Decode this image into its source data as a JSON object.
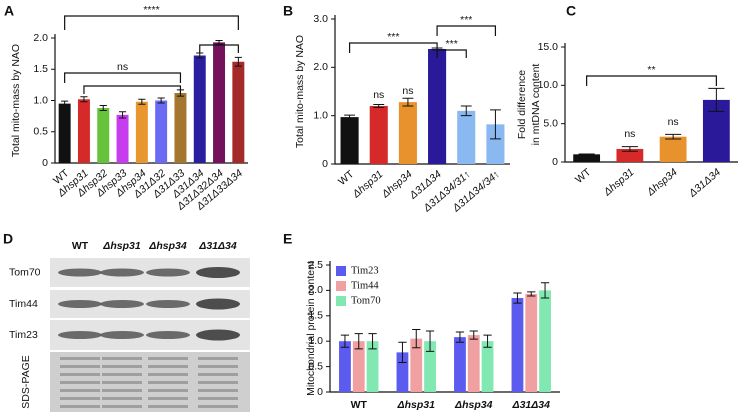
{
  "chart_data": [
    {
      "type": "bar",
      "panel": "A",
      "y_label": "Total mito-mass by NAO",
      "categories": [
        "WT",
        "Δhsp31",
        "Δhsp32",
        "Δhsp33",
        "Δhsp34",
        "Δ31Δ32",
        "Δ31Δ33",
        "Δ31Δ34",
        "Δ31Δ32Δ34",
        "Δ31Δ33Δ34"
      ],
      "values": [
        0.95,
        1.02,
        0.88,
        0.77,
        0.98,
        1.0,
        1.12,
        1.72,
        1.93,
        1.62
      ],
      "errors": [
        0.04,
        0.04,
        0.04,
        0.05,
        0.04,
        0.04,
        0.05,
        0.04,
        0.03,
        0.07
      ],
      "colors": [
        "#111111",
        "#d62a2a",
        "#66c23a",
        "#c83cf0",
        "#e8962e",
        "#6a6af5",
        "#a5772e",
        "#2a1f9e",
        "#74105c",
        "#a52a2a"
      ],
      "ylim": [
        0,
        2.0
      ],
      "yticks": [
        0,
        0.5,
        {
          "value": 1,
          "label": "1.0"
        },
        1.5,
        {
          "value": 2,
          "label": "2.0"
        }
      ],
      "annotations": [
        "****",
        "ns"
      ]
    },
    {
      "type": "bar",
      "panel": "B",
      "y_label": "Total mito-mass by NAO",
      "categories": [
        "WT",
        "Δhsp31",
        "Δhsp34",
        "Δ31Δ34",
        "Δ31Δ34/31↑",
        "Δ31Δ34/34↑"
      ],
      "values": [
        0.97,
        1.2,
        1.28,
        2.38,
        1.1,
        0.82
      ],
      "errors": [
        0.04,
        0.03,
        0.08,
        0.02,
        0.1,
        0.3
      ],
      "colors": [
        "#111111",
        "#d62a2a",
        "#e8922e",
        "#2a1a9a",
        "#8ab8f0",
        "#8ab8f0"
      ],
      "ylim": [
        0,
        3.0
      ],
      "yticks": [
        0,
        {
          "value": 1,
          "label": "1.0"
        },
        {
          "value": 2,
          "label": "2.0"
        },
        {
          "value": 3,
          "label": "3.0"
        }
      ],
      "annotations": [
        "ns",
        "ns",
        "***",
        "***",
        "***"
      ]
    },
    {
      "type": "bar",
      "panel": "C",
      "y_label": [
        "Fold difference",
        "in mtDNA content"
      ],
      "categories": [
        "WT",
        "Δhsp31",
        "Δhsp34",
        "Δ31Δ34"
      ],
      "values": [
        1.0,
        1.7,
        3.3,
        8.1
      ],
      "errors": [
        0.05,
        0.3,
        0.3,
        1.5
      ],
      "colors": [
        "#111111",
        "#d62a2a",
        "#e8922e",
        "#2a1a9a"
      ],
      "ylim": [
        0,
        15
      ],
      "yticks": [
        0,
        {
          "value": 5,
          "label": "5.0"
        },
        {
          "value": 10,
          "label": "10.0"
        },
        {
          "value": 15,
          "label": "15.0"
        }
      ],
      "annotations": [
        "ns",
        "ns",
        "**"
      ]
    },
    {
      "type": "grouped_bar",
      "panel": "E",
      "y_label": "Mitochondrial protein content",
      "categories": [
        "WT",
        "Δhsp31",
        "Δhsp34",
        "Δ31Δ34"
      ],
      "series": [
        {
          "name": "Tim23",
          "color": "#5b5bf0",
          "values": [
            1.0,
            0.78,
            1.08,
            1.85
          ],
          "errors": [
            0.12,
            0.2,
            0.1,
            0.1
          ]
        },
        {
          "name": "Tim44",
          "color": "#f0a0a0",
          "values": [
            1.0,
            1.05,
            1.12,
            1.93
          ],
          "errors": [
            0.15,
            0.18,
            0.08,
            0.04
          ]
        },
        {
          "name": "Tom70",
          "color": "#80e8b0",
          "values": [
            1.0,
            1.0,
            1.0,
            2.0
          ],
          "errors": [
            0.15,
            0.2,
            0.12,
            0.15
          ]
        }
      ],
      "ylim": [
        0,
        2.5
      ],
      "yticks": [
        0,
        0.5,
        {
          "value": 1,
          "label": "1.0"
        },
        1.5,
        {
          "value": 2,
          "label": "2.0"
        },
        2.5
      ]
    }
  ],
  "blot": {
    "panel": "D",
    "columns": [
      "WT",
      "Δhsp31",
      "Δhsp34",
      "Δ31Δ34"
    ],
    "rows": [
      "Tom70",
      "Tim44",
      "Tim23",
      "SDS-PAGE"
    ]
  }
}
